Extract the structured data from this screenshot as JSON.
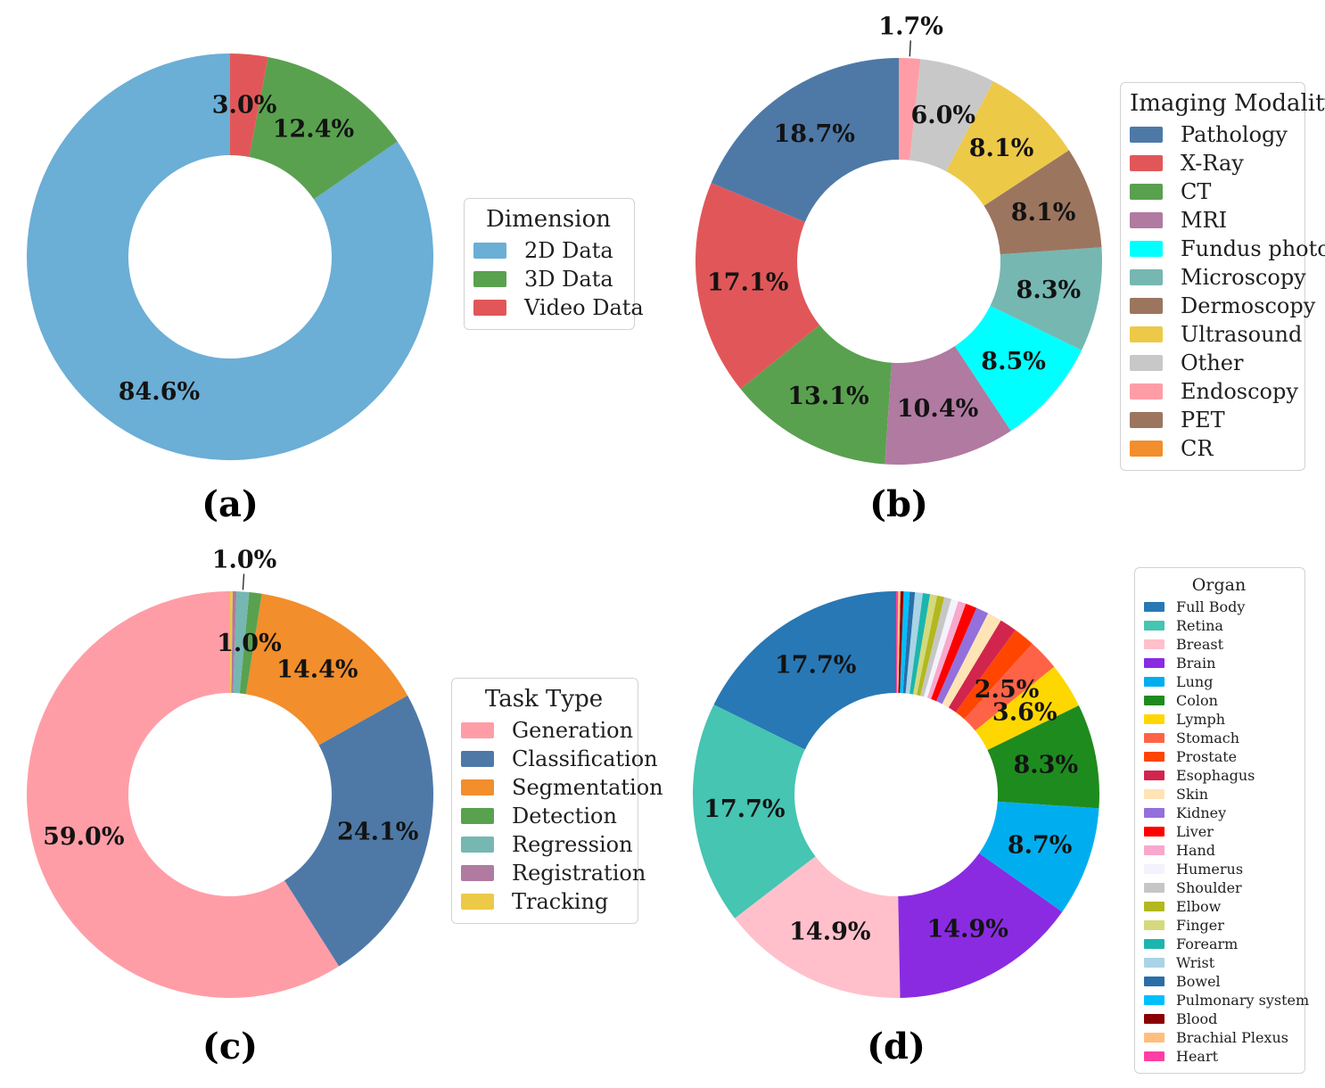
{
  "chart_data": [
    {
      "id": "a",
      "type": "pie",
      "subtype": "donut",
      "caption": "(a)",
      "legend_title": "Dimension",
      "legend_position": "right",
      "start_angle": 90,
      "counterclockwise": true,
      "donut_hole_ratio": 0.5,
      "slices": [
        {
          "label": "2D Data",
          "value": 84.6,
          "pct_label": "84.6%",
          "label_placement": "inside",
          "color": "#6baed6"
        },
        {
          "label": "3D Data",
          "value": 12.4,
          "pct_label": "12.4%",
          "label_placement": "inside",
          "color": "#59a14f"
        },
        {
          "label": "Video Data",
          "value": 3.0,
          "pct_label": "3.0%",
          "label_placement": "inside",
          "color": "#e15759"
        }
      ]
    },
    {
      "id": "b",
      "type": "pie",
      "subtype": "donut",
      "caption": "(b)",
      "legend_title": "Imaging Modality",
      "legend_position": "right",
      "start_angle": 90,
      "counterclockwise": true,
      "donut_hole_ratio": 0.5,
      "slices": [
        {
          "label": "Pathology",
          "value": 18.7,
          "pct_label": "18.7%",
          "label_placement": "inside",
          "color": "#4e79a7"
        },
        {
          "label": "X-Ray",
          "value": 17.1,
          "pct_label": "17.1%",
          "label_placement": "inside",
          "color": "#e15759"
        },
        {
          "label": "CT",
          "value": 13.1,
          "pct_label": "13.1%",
          "label_placement": "inside",
          "color": "#59a14f"
        },
        {
          "label": "MRI",
          "value": 10.4,
          "pct_label": "10.4%",
          "label_placement": "inside",
          "color": "#b07aa1"
        },
        {
          "label": "Fundus photo",
          "value": 8.5,
          "pct_label": "8.5%",
          "label_placement": "inside",
          "color": "#00ffff"
        },
        {
          "label": "Microscopy",
          "value": 8.3,
          "pct_label": "8.3%",
          "label_placement": "inside",
          "color": "#76b7b2"
        },
        {
          "label": "Dermoscopy",
          "value": 8.1,
          "pct_label": "8.1%",
          "label_placement": "inside",
          "color": "#9c755f"
        },
        {
          "label": "Ultrasound",
          "value": 8.1,
          "pct_label": "8.1%",
          "label_placement": "inside",
          "color": "#edc948"
        },
        {
          "label": "Other",
          "value": 6.0,
          "pct_label": "6.0%",
          "label_placement": "inside",
          "color": "#c8c8c8"
        },
        {
          "label": "Endoscopy",
          "value": 1.7,
          "pct_label": "1.7%",
          "label_placement": "outside",
          "color": "#ff9da7"
        },
        {
          "label": "PET",
          "value": 0.0,
          "pct_label": null,
          "label_placement": null,
          "color": "#9c755f"
        },
        {
          "label": "CR",
          "value": 0.0,
          "pct_label": null,
          "label_placement": null,
          "color": "#f28e2b"
        }
      ]
    },
    {
      "id": "c",
      "type": "pie",
      "subtype": "donut",
      "caption": "(c)",
      "legend_title": "Task Type",
      "legend_position": "right",
      "start_angle": 90,
      "counterclockwise": true,
      "donut_hole_ratio": 0.5,
      "slices": [
        {
          "label": "Generation",
          "value": 59.0,
          "pct_label": "59.0%",
          "label_placement": "inside",
          "color": "#ff9da7"
        },
        {
          "label": "Classification",
          "value": 24.1,
          "pct_label": "24.1%",
          "label_placement": "inside",
          "color": "#4e79a7"
        },
        {
          "label": "Segmentation",
          "value": 14.4,
          "pct_label": "14.4%",
          "label_placement": "inside",
          "color": "#f28e2b"
        },
        {
          "label": "Detection",
          "value": 1.0,
          "pct_label": "1.0%",
          "label_placement": "inside",
          "color": "#59a14f"
        },
        {
          "label": "Regression",
          "value": 1.0,
          "pct_label": "1.0%",
          "label_placement": "outside",
          "color": "#76b7b2"
        },
        {
          "label": "Registration",
          "value": 0.3,
          "pct_label": null,
          "label_placement": null,
          "color": "#b07aa1"
        },
        {
          "label": "Tracking",
          "value": 0.2,
          "pct_label": null,
          "label_placement": null,
          "color": "#edc948"
        }
      ]
    },
    {
      "id": "d",
      "type": "pie",
      "subtype": "donut",
      "caption": "(d)",
      "legend_title": "Organ",
      "legend_position": "right",
      "start_angle": 90,
      "counterclockwise": true,
      "donut_hole_ratio": 0.5,
      "slices": [
        {
          "label": "Full Body",
          "value": 17.7,
          "pct_label": "17.7%",
          "label_placement": "inside",
          "color": "#2878b5"
        },
        {
          "label": "Retina",
          "value": 17.7,
          "pct_label": "17.7%",
          "label_placement": "inside",
          "color": "#45c5b2"
        },
        {
          "label": "Breast",
          "value": 14.9,
          "pct_label": "14.9%",
          "label_placement": "inside",
          "color": "#ffc0cb"
        },
        {
          "label": "Brain",
          "value": 14.9,
          "pct_label": "14.9%",
          "label_placement": "inside",
          "color": "#8a2be2"
        },
        {
          "label": "Lung",
          "value": 8.7,
          "pct_label": "8.7%",
          "label_placement": "inside",
          "color": "#00aeef"
        },
        {
          "label": "Colon",
          "value": 8.3,
          "pct_label": "8.3%",
          "label_placement": "inside",
          "color": "#1e8b1e"
        },
        {
          "label": "Lymph",
          "value": 3.6,
          "pct_label": "3.6%",
          "label_placement": "inside",
          "color": "#ffd700"
        },
        {
          "label": "Stomach",
          "value": 2.5,
          "pct_label": "2.5%",
          "label_placement": "inside",
          "color": "#ff6347"
        },
        {
          "label": "Prostate",
          "value": 1.7,
          "pct_label": null,
          "label_placement": null,
          "color": "#ff4500"
        },
        {
          "label": "Esophagus",
          "value": 1.35,
          "pct_label": null,
          "label_placement": null,
          "color": "#d2254e"
        },
        {
          "label": "Skin",
          "value": 1.15,
          "pct_label": null,
          "label_placement": null,
          "color": "#ffe4b5"
        },
        {
          "label": "Kidney",
          "value": 1.0,
          "pct_label": null,
          "label_placement": null,
          "color": "#9370db"
        },
        {
          "label": "Liver",
          "value": 0.9,
          "pct_label": null,
          "label_placement": null,
          "color": "#ff0000"
        },
        {
          "label": "Hand",
          "value": 0.62,
          "pct_label": null,
          "label_placement": null,
          "color": "#f8a8cc"
        },
        {
          "label": "Humerus",
          "value": 0.57,
          "pct_label": null,
          "label_placement": null,
          "color": "#f4f2fc"
        },
        {
          "label": "Shoulder",
          "value": 0.57,
          "pct_label": null,
          "label_placement": null,
          "color": "#c6c6c6"
        },
        {
          "label": "Elbow",
          "value": 0.57,
          "pct_label": null,
          "label_placement": null,
          "color": "#b2b81e"
        },
        {
          "label": "Finger",
          "value": 0.57,
          "pct_label": null,
          "label_placement": null,
          "color": "#d4d97c"
        },
        {
          "label": "Forearm",
          "value": 0.57,
          "pct_label": null,
          "label_placement": null,
          "color": "#1cb5ae"
        },
        {
          "label": "Wrist",
          "value": 0.62,
          "pct_label": null,
          "label_placement": null,
          "color": "#a8d4e6"
        },
        {
          "label": "Bowel",
          "value": 0.42,
          "pct_label": null,
          "label_placement": null,
          "color": "#2a6ea8"
        },
        {
          "label": "Pulmonary system",
          "value": 0.47,
          "pct_label": null,
          "label_placement": null,
          "color": "#00bfff"
        },
        {
          "label": "Blood",
          "value": 0.25,
          "pct_label": null,
          "label_placement": null,
          "color": "#8b0000"
        },
        {
          "label": "Brachial Plexus",
          "value": 0.19,
          "pct_label": null,
          "label_placement": null,
          "color": "#ffbe7d"
        },
        {
          "label": "Heart",
          "value": 0.15,
          "pct_label": null,
          "label_placement": null,
          "color": "#ff3fa4"
        }
      ]
    }
  ]
}
